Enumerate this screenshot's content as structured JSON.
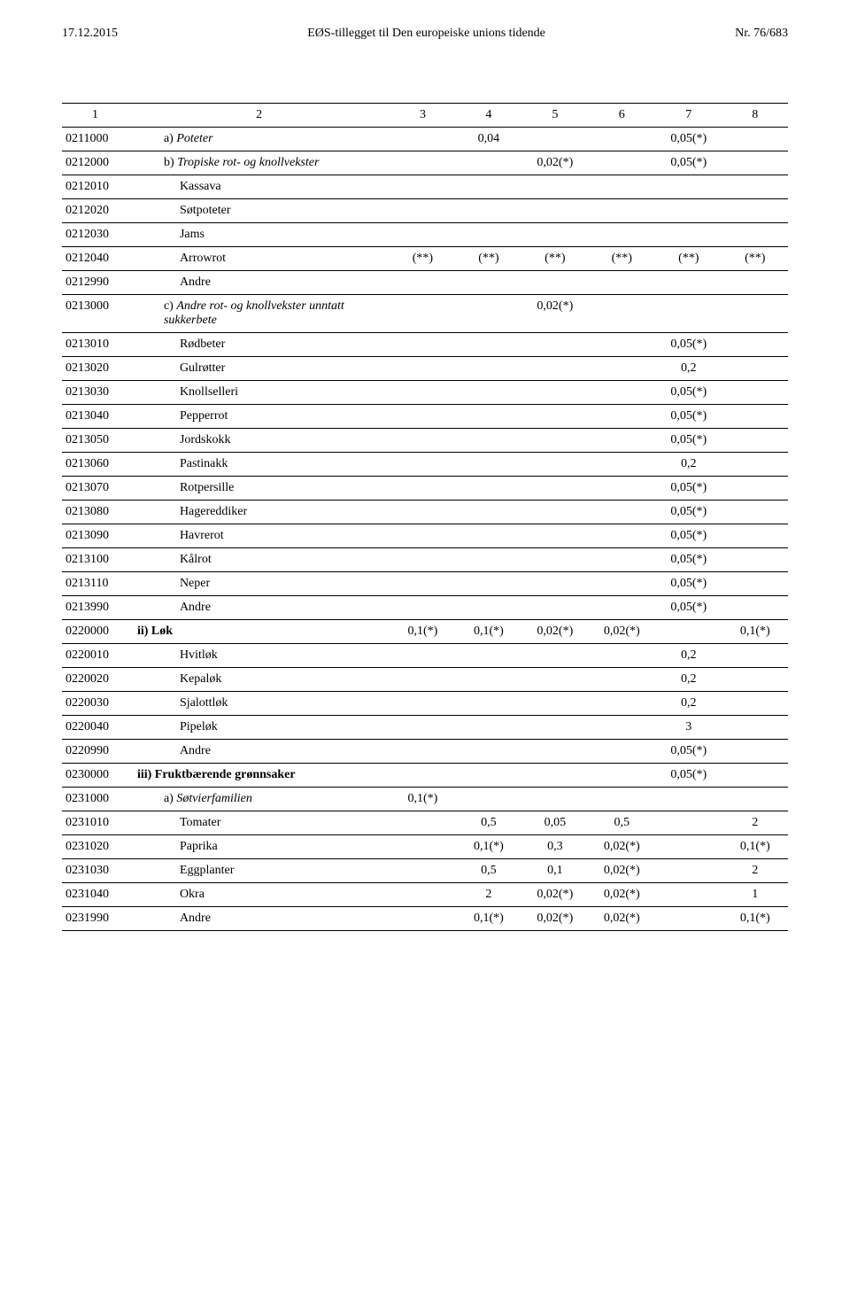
{
  "header": {
    "left": "17.12.2015",
    "center": "EØS-tillegget til Den europeiske unions tidende",
    "right": "Nr. 76/683"
  },
  "columns": [
    "1",
    "2",
    "3",
    "4",
    "5",
    "6",
    "7",
    "8"
  ],
  "rows": [
    {
      "code": "0211000",
      "indent": 1,
      "label_prefix": "a)",
      "label": "Poteter",
      "italic": true,
      "v": [
        "",
        "0,04",
        "",
        "",
        "0,05(*)",
        ""
      ]
    },
    {
      "code": "0212000",
      "indent": 1,
      "label_prefix": "b)",
      "label": "Tropiske rot- og knollvekster",
      "italic": true,
      "v": [
        "",
        "",
        "0,02(*)",
        "",
        "0,05(*)",
        ""
      ]
    },
    {
      "code": "0212010",
      "indent": 2,
      "label": "Kassava",
      "v": [
        "",
        "",
        "",
        "",
        "",
        ""
      ]
    },
    {
      "code": "0212020",
      "indent": 2,
      "label": "Søtpoteter",
      "v": [
        "",
        "",
        "",
        "",
        "",
        ""
      ]
    },
    {
      "code": "0212030",
      "indent": 2,
      "label": "Jams",
      "v": [
        "",
        "",
        "",
        "",
        "",
        ""
      ]
    },
    {
      "code": "0212040",
      "indent": 2,
      "label": "Arrowrot",
      "v": [
        "(**)",
        "(**)",
        "(**)",
        "(**)",
        "(**)",
        "(**)"
      ]
    },
    {
      "code": "0212990",
      "indent": 2,
      "label": "Andre",
      "v": [
        "",
        "",
        "",
        "",
        "",
        ""
      ]
    },
    {
      "code": "0213000",
      "indent": 1,
      "label_prefix": "c)",
      "label": "Andre rot- og knollvekster unntatt sukkerbete",
      "italic": true,
      "v": [
        "",
        "",
        "0,02(*)",
        "",
        "",
        ""
      ]
    },
    {
      "code": "0213010",
      "indent": 2,
      "label": "Rødbeter",
      "v": [
        "",
        "",
        "",
        "",
        "0,05(*)",
        ""
      ]
    },
    {
      "code": "0213020",
      "indent": 2,
      "label": "Gulrøtter",
      "v": [
        "",
        "",
        "",
        "",
        "0,2",
        ""
      ]
    },
    {
      "code": "0213030",
      "indent": 2,
      "label": "Knollselleri",
      "v": [
        "",
        "",
        "",
        "",
        "0,05(*)",
        ""
      ]
    },
    {
      "code": "0213040",
      "indent": 2,
      "label": "Pepperrot",
      "v": [
        "",
        "",
        "",
        "",
        "0,05(*)",
        ""
      ]
    },
    {
      "code": "0213050",
      "indent": 2,
      "label": "Jordskokk",
      "v": [
        "",
        "",
        "",
        "",
        "0,05(*)",
        ""
      ]
    },
    {
      "code": "0213060",
      "indent": 2,
      "label": "Pastinakk",
      "v": [
        "",
        "",
        "",
        "",
        "0,2",
        ""
      ]
    },
    {
      "code": "0213070",
      "indent": 2,
      "label": "Rotpersille",
      "v": [
        "",
        "",
        "",
        "",
        "0,05(*)",
        ""
      ]
    },
    {
      "code": "0213080",
      "indent": 2,
      "label": "Hagereddiker",
      "v": [
        "",
        "",
        "",
        "",
        "0,05(*)",
        ""
      ]
    },
    {
      "code": "0213090",
      "indent": 2,
      "label": "Havrerot",
      "v": [
        "",
        "",
        "",
        "",
        "0,05(*)",
        ""
      ]
    },
    {
      "code": "0213100",
      "indent": 2,
      "label": "Kålrot",
      "v": [
        "",
        "",
        "",
        "",
        "0,05(*)",
        ""
      ]
    },
    {
      "code": "0213110",
      "indent": 2,
      "label": "Neper",
      "v": [
        "",
        "",
        "",
        "",
        "0,05(*)",
        ""
      ]
    },
    {
      "code": "0213990",
      "indent": 2,
      "label": "Andre",
      "v": [
        "",
        "",
        "",
        "",
        "0,05(*)",
        ""
      ]
    },
    {
      "code": "0220000",
      "indent": 0,
      "label_prefix": "ii)",
      "label": "Løk",
      "bold": true,
      "v": [
        "0,1(*)",
        "0,1(*)",
        "0,02(*)",
        "0,02(*)",
        "",
        "0,1(*)"
      ]
    },
    {
      "code": "0220010",
      "indent": 2,
      "label": "Hvitløk",
      "v": [
        "",
        "",
        "",
        "",
        "0,2",
        ""
      ]
    },
    {
      "code": "0220020",
      "indent": 2,
      "label": "Kepaløk",
      "v": [
        "",
        "",
        "",
        "",
        "0,2",
        ""
      ]
    },
    {
      "code": "0220030",
      "indent": 2,
      "label": "Sjalottløk",
      "v": [
        "",
        "",
        "",
        "",
        "0,2",
        ""
      ]
    },
    {
      "code": "0220040",
      "indent": 2,
      "label": "Pipeløk",
      "v": [
        "",
        "",
        "",
        "",
        "3",
        ""
      ]
    },
    {
      "code": "0220990",
      "indent": 2,
      "label": "Andre",
      "v": [
        "",
        "",
        "",
        "",
        "0,05(*)",
        ""
      ]
    },
    {
      "code": "0230000",
      "indent": 0,
      "label_prefix": "iii)",
      "label": "Fruktbærende grønnsaker",
      "bold": true,
      "v": [
        "",
        "",
        "",
        "",
        "0,05(*)",
        ""
      ]
    },
    {
      "code": "0231000",
      "indent": 1,
      "label_prefix": "a)",
      "label": "Søtvierfamilien",
      "italic": true,
      "v": [
        "0,1(*)",
        "",
        "",
        "",
        "",
        ""
      ]
    },
    {
      "code": "0231010",
      "indent": 2,
      "label": "Tomater",
      "v": [
        "",
        "0,5",
        "0,05",
        "0,5",
        "",
        "2"
      ]
    },
    {
      "code": "0231020",
      "indent": 2,
      "label": "Paprika",
      "v": [
        "",
        "0,1(*)",
        "0,3",
        "0,02(*)",
        "",
        "0,1(*)"
      ]
    },
    {
      "code": "0231030",
      "indent": 2,
      "label": "Eggplanter",
      "v": [
        "",
        "0,5",
        "0,1",
        "0,02(*)",
        "",
        "2"
      ]
    },
    {
      "code": "0231040",
      "indent": 2,
      "label": "Okra",
      "v": [
        "",
        "2",
        "0,02(*)",
        "0,02(*)",
        "",
        "1"
      ]
    },
    {
      "code": "0231990",
      "indent": 2,
      "label": "Andre",
      "v": [
        "",
        "0,1(*)",
        "0,02(*)",
        "0,02(*)",
        "",
        "0,1(*)"
      ]
    }
  ]
}
